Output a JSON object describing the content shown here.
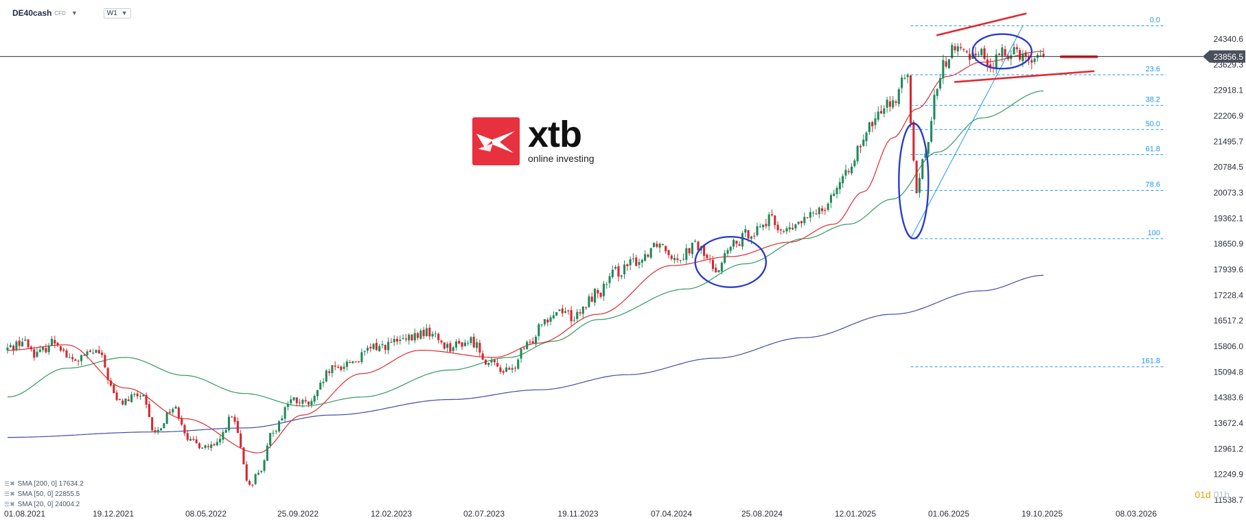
{
  "header": {
    "symbol": "DE40cash",
    "symbol_type": "CFD",
    "timeframe": "W1",
    "caret_icon": "chevron-down-icon"
  },
  "logo": {
    "name": "xtb",
    "tagline": "online investing",
    "color": "#e8313f"
  },
  "legend": [
    {
      "label": "SMA [200, 0] 17634.2",
      "color": "#3f4aa6"
    },
    {
      "label": "SMA [50, 0] 22855.5",
      "color": "#2e9a5a"
    },
    {
      "label": "SMA [20, 0] 24004.2",
      "color": "#e0282e"
    }
  ],
  "period_indicator": {
    "active": "01d",
    "inactive": "01h"
  },
  "chart_data": {
    "type": "candlestick",
    "y_ticks": [
      "24340.6",
      "23629.3",
      "22918.1",
      "22206.9",
      "21495.7",
      "20784.5",
      "20073.3",
      "19362.1",
      "18650.9",
      "17939.6",
      "17228.4",
      "16517.2",
      "15806.0",
      "15094.8",
      "14383.6",
      "13672.4",
      "12961.2",
      "12249.9",
      "11538.7"
    ],
    "ylim": [
      11538.7,
      25052
    ],
    "x_ticks": [
      "01.08.2021",
      "19.12.2021",
      "08.05.2022",
      "25.09.2022",
      "12.02.2023",
      "02.07.2023",
      "19.11.2023",
      "07.04.2024",
      "25.08.2024",
      "12.01.2025",
      "01.06.2025",
      "19.10.2025",
      "08.03.2026"
    ],
    "current_price": "23856.5",
    "colors": {
      "up": "#1e8a5a",
      "down": "#d9262e",
      "sma200": "#3f4aa6",
      "sma50": "#2e9a5a",
      "sma20": "#e0282e",
      "fib": "#2196f3",
      "annotation": "#2a3bc9",
      "price_line": "#2b2f3a"
    },
    "fibonacci": [
      {
        "level": "0.0",
        "price": 24710
      },
      {
        "level": "23.6",
        "price": 23350
      },
      {
        "level": "38.2",
        "price": 22500
      },
      {
        "level": "50.0",
        "price": 21830
      },
      {
        "level": "61.8",
        "price": 21130
      },
      {
        "level": "78.6",
        "price": 20140
      },
      {
        "level": "100",
        "price": 18800
      },
      {
        "level": "161.8",
        "price": 15240
      }
    ],
    "candles_anchor_closes": [
      [
        0,
        15750
      ],
      [
        5,
        15950
      ],
      [
        10,
        15600
      ],
      [
        16,
        15950
      ],
      [
        22,
        15400
      ],
      [
        30,
        15650
      ],
      [
        38,
        14250
      ],
      [
        45,
        14450
      ],
      [
        50,
        13400
      ],
      [
        56,
        14100
      ],
      [
        63,
        13100
      ],
      [
        70,
        13000
      ],
      [
        76,
        13800
      ],
      [
        82,
        12000
      ],
      [
        86,
        12400
      ],
      [
        90,
        13500
      ],
      [
        96,
        14300
      ],
      [
        102,
        14200
      ],
      [
        110,
        15150
      ],
      [
        117,
        15400
      ],
      [
        125,
        15800
      ],
      [
        134,
        15950
      ],
      [
        142,
        16200
      ],
      [
        150,
        15800
      ],
      [
        157,
        15950
      ],
      [
        164,
        15300
      ],
      [
        170,
        15100
      ],
      [
        176,
        15800
      ],
      [
        182,
        16600
      ],
      [
        188,
        16850
      ],
      [
        192,
        16600
      ],
      [
        200,
        17300
      ],
      [
        207,
        17900
      ],
      [
        214,
        18200
      ],
      [
        220,
        18700
      ],
      [
        227,
        18300
      ],
      [
        233,
        18600
      ],
      [
        240,
        18000
      ],
      [
        246,
        18600
      ],
      [
        252,
        19000
      ],
      [
        258,
        19300
      ],
      [
        264,
        19000
      ],
      [
        270,
        19300
      ],
      [
        276,
        19700
      ],
      [
        282,
        20300
      ],
      [
        288,
        21200
      ],
      [
        294,
        22100
      ],
      [
        298,
        22700
      ],
      [
        300,
        22500
      ],
      [
        302,
        23000
      ],
      [
        305,
        23300
      ],
      [
        306,
        22100
      ],
      [
        308,
        20200
      ],
      [
        311,
        21200
      ],
      [
        314,
        22600
      ],
      [
        317,
        23600
      ],
      [
        321,
        24100
      ],
      [
        325,
        23900
      ],
      [
        329,
        24050
      ],
      [
        333,
        23600
      ],
      [
        337,
        23900
      ],
      [
        341,
        24100
      ],
      [
        345,
        23850
      ],
      [
        348,
        23800
      ],
      [
        351,
        23856
      ]
    ],
    "sma200_anchors": [
      [
        0,
        13280
      ],
      [
        50,
        13430
      ],
      [
        80,
        13540
      ],
      [
        110,
        13900
      ],
      [
        150,
        14330
      ],
      [
        180,
        14600
      ],
      [
        210,
        15020
      ],
      [
        240,
        15480
      ],
      [
        270,
        16050
      ],
      [
        300,
        16700
      ],
      [
        330,
        17350
      ],
      [
        351,
        17780
      ]
    ],
    "sma50_anchors": [
      [
        0,
        14400
      ],
      [
        20,
        15200
      ],
      [
        40,
        15500
      ],
      [
        60,
        15000
      ],
      [
        80,
        14500
      ],
      [
        100,
        14150
      ],
      [
        120,
        14400
      ],
      [
        150,
        15150
      ],
      [
        170,
        15500
      ],
      [
        185,
        15950
      ],
      [
        200,
        16550
      ],
      [
        230,
        17400
      ],
      [
        250,
        18100
      ],
      [
        270,
        18800
      ],
      [
        285,
        19200
      ],
      [
        300,
        19900
      ],
      [
        315,
        21200
      ],
      [
        330,
        22150
      ],
      [
        351,
        22900
      ]
    ],
    "sma20_anchors": [
      [
        0,
        15700
      ],
      [
        20,
        15850
      ],
      [
        40,
        14650
      ],
      [
        60,
        13800
      ],
      [
        85,
        12850
      ],
      [
        100,
        13900
      ],
      [
        120,
        15050
      ],
      [
        140,
        15700
      ],
      [
        165,
        15500
      ],
      [
        180,
        15900
      ],
      [
        200,
        16700
      ],
      [
        225,
        18050
      ],
      [
        245,
        18300
      ],
      [
        265,
        18700
      ],
      [
        280,
        19200
      ],
      [
        290,
        20100
      ],
      [
        300,
        21600
      ],
      [
        308,
        22400
      ],
      [
        318,
        23300
      ],
      [
        330,
        23700
      ],
      [
        351,
        24000
      ]
    ],
    "annotations": {
      "ellipses": [
        {
          "center_index": 245,
          "center_price": 18150,
          "rx_index": 12,
          "ry_price": 700
        },
        {
          "center_index": 307,
          "center_price": 20400,
          "rx_index": 5,
          "ry_price": 1600
        },
        {
          "center_index": 337,
          "center_price": 24000,
          "rx_index": 10,
          "ry_price": 480
        }
      ],
      "wedge_upper": [
        [
          315,
          24450
        ],
        [
          345,
          25050
        ]
      ],
      "wedge_lower": [
        [
          321,
          23150
        ],
        [
          368,
          23450
        ]
      ],
      "target_segment": [
        [
          357,
          23850
        ],
        [
          369,
          23850
        ]
      ],
      "fib_trend": [
        [
          306,
          18800
        ],
        [
          344,
          24710
        ]
      ]
    }
  }
}
